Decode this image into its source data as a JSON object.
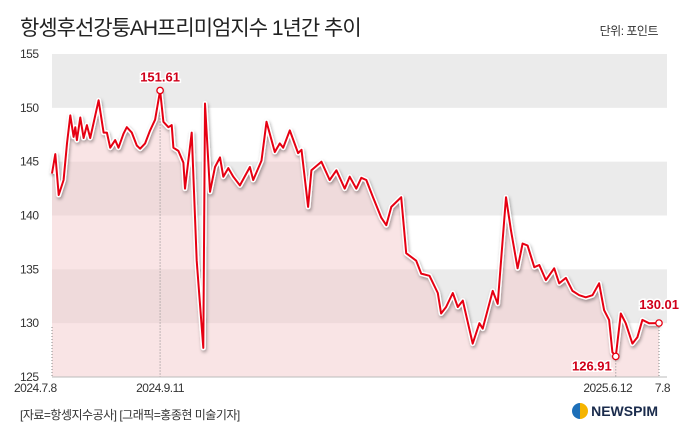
{
  "header": {
    "title": "항셍후선강퉁AH프리미엄지수 1년간 추이",
    "unit": "단위: 포인트"
  },
  "footer": {
    "source": "[자료=항셍지수공사] [그래픽=홍종현 미술기자]",
    "logo_text": "NEWSPIM"
  },
  "colors": {
    "line": "#e60012",
    "band": "#ebebeb",
    "fill": "#f4c9cc",
    "label": "#d0001a"
  },
  "chart_data": {
    "type": "line",
    "title": "항셍후선강퉁AH프리미엄지수 1년간 추이",
    "xlabel": "",
    "ylabel": "포인트",
    "ylim": [
      125,
      155
    ],
    "yticks": [
      "125",
      "130",
      "135",
      "140",
      "145",
      "150",
      "155"
    ],
    "xlim_days": [
      0,
      365
    ],
    "xticks": [
      {
        "day": 0,
        "label": "2024.7.8"
      },
      {
        "day": 65,
        "label": "2024.9.11"
      },
      {
        "day": 339,
        "label": "2025.6.12"
      },
      {
        "day": 365,
        "label": "7.8"
      }
    ],
    "annotations": [
      {
        "day": 65,
        "value": 151.61,
        "label": "151.61"
      },
      {
        "day": 339,
        "value": 126.91,
        "label": "126.91"
      },
      {
        "day": 365,
        "value": 130.01,
        "label": "130.01"
      }
    ],
    "series": [
      {
        "name": "AH프리미엄지수",
        "x_days": [
          0,
          2,
          4,
          7,
          9,
          11,
          13,
          14,
          15,
          17,
          19,
          21,
          23,
          25,
          28,
          31,
          33,
          35,
          38,
          40,
          43,
          45,
          48,
          51,
          53,
          56,
          59,
          62,
          65,
          67,
          70,
          72,
          73,
          76,
          79,
          80,
          84,
          87,
          91,
          92,
          95,
          98,
          101,
          103,
          106,
          109,
          113,
          119,
          121,
          126,
          129,
          134,
          137,
          139,
          143,
          148,
          150,
          154,
          156,
          162,
          167,
          171,
          176,
          179,
          183,
          186,
          189,
          193,
          198,
          201,
          204,
          210,
          213,
          219,
          222,
          227,
          232,
          234,
          237,
          241,
          244,
          247,
          253,
          257,
          259,
          265,
          268,
          273,
          276,
          280,
          283,
          286,
          290,
          293,
          297,
          302,
          305,
          309,
          313,
          317,
          321,
          325,
          329,
          332,
          335,
          337,
          339,
          342,
          345,
          349,
          352,
          355,
          359,
          365
        ],
        "values": [
          143.9,
          145.7,
          141.9,
          143.3,
          146.7,
          149.3,
          147.3,
          148.2,
          147.0,
          149.1,
          147.2,
          148.4,
          147.2,
          148.6,
          150.7,
          147.7,
          147.7,
          146.3,
          147.0,
          146.3,
          147.6,
          148.2,
          147.7,
          146.5,
          146.2,
          146.7,
          147.9,
          148.9,
          151.61,
          148.7,
          148.2,
          148.4,
          146.3,
          146.0,
          144.9,
          142.5,
          147.7,
          135.8,
          127.7,
          150.4,
          142.2,
          144.5,
          145.4,
          143.6,
          144.4,
          143.6,
          142.8,
          144.5,
          143.3,
          145.1,
          148.7,
          145.9,
          146.7,
          146.3,
          147.9,
          145.8,
          146.1,
          140.8,
          144.2,
          145.0,
          143.3,
          144.2,
          142.5,
          143.6,
          142.5,
          143.5,
          143.3,
          141.7,
          139.8,
          139.1,
          140.8,
          141.7,
          136.5,
          135.8,
          134.6,
          134.4,
          132.8,
          130.9,
          131.5,
          132.8,
          131.5,
          132.1,
          128.1,
          130.0,
          129.5,
          133.0,
          131.8,
          141.7,
          138.6,
          135.1,
          137.4,
          137.2,
          135.2,
          135.4,
          134.0,
          135.1,
          133.7,
          134.2,
          133.0,
          132.6,
          132.4,
          132.6,
          133.7,
          131.2,
          130.3,
          127.3,
          126.91,
          130.9,
          130.0,
          128.1,
          128.7,
          130.3,
          130.0,
          130.01
        ]
      }
    ]
  }
}
